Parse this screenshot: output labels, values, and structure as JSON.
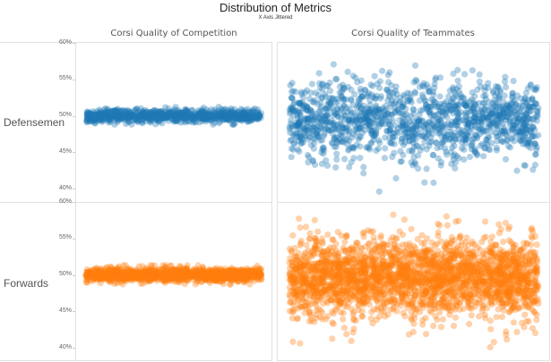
{
  "chart_data": {
    "type": "scatter",
    "title": "Distribution of Metrics",
    "subtitle": "X Axis Jittered",
    "columns": [
      "Corsi Quality of Competition",
      "Corsi Quality of Teammates"
    ],
    "rows": [
      "Defensemen",
      "Forwards"
    ],
    "y_axis": {
      "ylim": [
        39,
        60.5
      ],
      "ticks": [
        60,
        55,
        50,
        45,
        40
      ],
      "tick_labels": [
        "60%",
        "55%",
        "50%",
        "45%",
        "40%"
      ]
    },
    "x_axis": {
      "label": "",
      "jittered": true
    },
    "grid": false,
    "colors": {
      "Defensemen": "#1f77b4",
      "Forwards": "#ff7f0e"
    },
    "point_opacity": 0.35,
    "series": [
      {
        "row": "Defensemen",
        "column": "Corsi Quality of Competition",
        "mean": 50.0,
        "sd": 0.45,
        "min": 48.8,
        "max": 51.2,
        "n": 900
      },
      {
        "row": "Defensemen",
        "column": "Corsi Quality of Teammates",
        "mean": 49.4,
        "sd": 2.7,
        "min": 39.6,
        "max": 57.9,
        "n": 1400
      },
      {
        "row": "Forwards",
        "column": "Corsi Quality of Competition",
        "mean": 50.0,
        "sd": 0.45,
        "min": 48.7,
        "max": 51.3,
        "n": 1400
      },
      {
        "row": "Forwards",
        "column": "Corsi Quality of Teammates",
        "mean": 49.6,
        "sd": 2.6,
        "min": 39.8,
        "max": 58.8,
        "n": 2600
      }
    ]
  }
}
